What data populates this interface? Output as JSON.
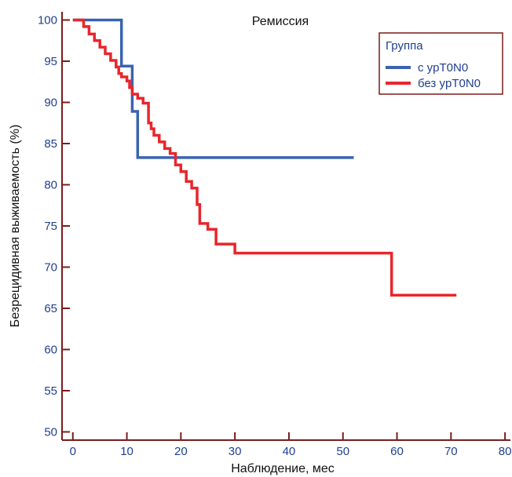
{
  "chart_data": {
    "type": "line",
    "title": "Ремиссия",
    "xlabel": "Наблюдение, мес",
    "ylabel": "Безрецидивная выживаемость (%)",
    "xlim": [
      -2,
      81
    ],
    "ylim": [
      49,
      101
    ],
    "xticks": [
      0,
      10,
      20,
      30,
      40,
      50,
      60,
      70,
      80
    ],
    "yticks": [
      50,
      55,
      60,
      65,
      70,
      75,
      80,
      85,
      90,
      95,
      100
    ],
    "grid": false,
    "legend": {
      "title": "Группа",
      "position": "top-right"
    },
    "colors": {
      "axis": "#7a1c1c",
      "tick_text": "#1f3f8f"
    },
    "series": [
      {
        "name": "с ypT0N0",
        "color": "#3a63b0",
        "step": true,
        "points": [
          [
            0,
            100
          ],
          [
            9,
            100
          ],
          [
            9,
            94.4
          ],
          [
            11,
            94.4
          ],
          [
            11,
            88.9
          ],
          [
            12,
            88.9
          ],
          [
            12,
            83.3
          ],
          [
            52,
            83.3
          ]
        ]
      },
      {
        "name": "без ypT0N0",
        "color": "#e8262c",
        "step": true,
        "points": [
          [
            0,
            100
          ],
          [
            2,
            100
          ],
          [
            2,
            99.2
          ],
          [
            3,
            99.2
          ],
          [
            3,
            98.3
          ],
          [
            4,
            98.3
          ],
          [
            4,
            97.5
          ],
          [
            5,
            97.5
          ],
          [
            5,
            96.7
          ],
          [
            6,
            96.7
          ],
          [
            6,
            95.9
          ],
          [
            7,
            95.9
          ],
          [
            7,
            95.1
          ],
          [
            8,
            95.1
          ],
          [
            8,
            94.3
          ],
          [
            8.5,
            94.3
          ],
          [
            8.5,
            93.5
          ],
          [
            9,
            93.5
          ],
          [
            9,
            93.1
          ],
          [
            10,
            93.1
          ],
          [
            10,
            92.6
          ],
          [
            10.5,
            92.6
          ],
          [
            10.5,
            91.8
          ],
          [
            11,
            91.8
          ],
          [
            11,
            91.0
          ],
          [
            12,
            91.0
          ],
          [
            12,
            90.5
          ],
          [
            13,
            90.5
          ],
          [
            13,
            89.9
          ],
          [
            14,
            89.9
          ],
          [
            14,
            87.5
          ],
          [
            14.5,
            87.5
          ],
          [
            14.5,
            86.8
          ],
          [
            15,
            86.8
          ],
          [
            15,
            86.0
          ],
          [
            16,
            86.0
          ],
          [
            16,
            85.2
          ],
          [
            17,
            85.2
          ],
          [
            17,
            84.4
          ],
          [
            18,
            84.4
          ],
          [
            18,
            83.8
          ],
          [
            19,
            83.8
          ],
          [
            19,
            82.4
          ],
          [
            20,
            82.4
          ],
          [
            20,
            81.6
          ],
          [
            21,
            81.6
          ],
          [
            21,
            80.4
          ],
          [
            22,
            80.4
          ],
          [
            22,
            79.6
          ],
          [
            23,
            79.6
          ],
          [
            23,
            77.6
          ],
          [
            23.5,
            77.6
          ],
          [
            23.5,
            75.3
          ],
          [
            25,
            75.3
          ],
          [
            25,
            74.6
          ],
          [
            26.5,
            74.6
          ],
          [
            26.5,
            72.8
          ],
          [
            30,
            72.8
          ],
          [
            30,
            71.7
          ],
          [
            59,
            71.7
          ],
          [
            59,
            66.6
          ],
          [
            71,
            66.6
          ]
        ]
      }
    ]
  }
}
